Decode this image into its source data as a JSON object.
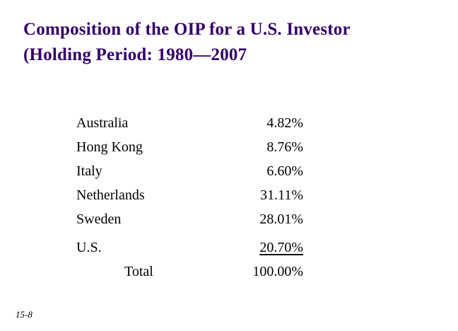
{
  "title": {
    "line1": "Composition of the OIP for a U.S. Investor",
    "line2": "(Holding Period: 1980—2007"
  },
  "table": {
    "rows": [
      {
        "label": "Australia",
        "value": "4.82%"
      },
      {
        "label": "Hong Kong",
        "value": "8.76%"
      },
      {
        "label": "Italy",
        "value": "6.60%"
      },
      {
        "label": "Netherlands",
        "value": "31.11%"
      },
      {
        "label": "Sweden",
        "value": "28.01%"
      },
      {
        "label": "U.S.",
        "value": "20.70%"
      },
      {
        "label": "Total",
        "value": "100.00%"
      }
    ]
  },
  "footer": {
    "page_number": "15-8"
  },
  "colors": {
    "title": "#330066",
    "body_text": "#000000",
    "background": "#ffffff"
  }
}
